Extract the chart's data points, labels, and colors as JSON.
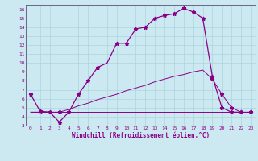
{
  "xlabel": "Windchill (Refroidissement éolien,°C)",
  "bg_color": "#cce8f0",
  "line_color": "#880088",
  "xlim": [
    -0.5,
    23.5
  ],
  "ylim": [
    3,
    16.5
  ],
  "xticks": [
    0,
    1,
    2,
    3,
    4,
    5,
    6,
    7,
    8,
    9,
    10,
    11,
    12,
    13,
    14,
    15,
    16,
    17,
    18,
    19,
    20,
    21,
    22,
    23
  ],
  "yticks": [
    3,
    4,
    5,
    6,
    7,
    8,
    9,
    10,
    11,
    12,
    13,
    14,
    15,
    16
  ],
  "line1_x": [
    0,
    1,
    2,
    3,
    4,
    5,
    6,
    7,
    8,
    9,
    10,
    11,
    12,
    13,
    14,
    15,
    16,
    17,
    18,
    19,
    20,
    21,
    22
  ],
  "line1_y": [
    6.5,
    4.6,
    4.5,
    3.4,
    4.5,
    6.5,
    8.0,
    9.5,
    10.0,
    12.2,
    12.2,
    13.8,
    14.0,
    15.0,
    15.3,
    15.5,
    16.1,
    15.7,
    15.0,
    8.5,
    5.0,
    4.5,
    4.5
  ],
  "line1_markers_x": [
    0,
    1,
    2,
    3,
    4,
    5,
    6,
    7,
    9,
    10,
    11,
    12,
    13,
    14,
    15,
    16,
    17,
    18,
    19,
    20,
    21,
    22
  ],
  "line1_markers_y": [
    6.5,
    4.6,
    4.5,
    3.4,
    4.5,
    6.5,
    8.0,
    9.5,
    12.2,
    12.2,
    13.8,
    14.0,
    15.0,
    15.3,
    15.5,
    16.1,
    15.7,
    15.0,
    8.5,
    5.0,
    4.5,
    4.5
  ],
  "line2_x": [
    0,
    1,
    2,
    3,
    4,
    5,
    6,
    7,
    8,
    9,
    10,
    11,
    12,
    13,
    14,
    15,
    16,
    17,
    18,
    19,
    20,
    21,
    22,
    23
  ],
  "line2_y": [
    4.5,
    4.5,
    4.5,
    4.5,
    4.5,
    4.5,
    4.5,
    4.5,
    4.5,
    4.5,
    4.5,
    4.5,
    4.5,
    4.5,
    4.5,
    4.5,
    4.5,
    4.5,
    4.5,
    4.5,
    4.5,
    4.5,
    4.5,
    4.5
  ],
  "line3_x": [
    0,
    1,
    2,
    3,
    4,
    5,
    6,
    7,
    8,
    9,
    10,
    11,
    12,
    13,
    14,
    15,
    16,
    17,
    18,
    19,
    20,
    21,
    22,
    23
  ],
  "line3_y": [
    4.5,
    4.5,
    4.5,
    4.5,
    4.8,
    5.2,
    5.5,
    5.9,
    6.2,
    6.5,
    6.9,
    7.2,
    7.5,
    7.9,
    8.2,
    8.5,
    8.7,
    9.0,
    9.2,
    8.2,
    6.5,
    5.0,
    4.5,
    4.5
  ],
  "line3_markers_x": [
    3,
    19,
    20,
    21,
    22,
    23
  ],
  "line3_markers_y": [
    4.5,
    8.2,
    6.5,
    5.0,
    4.5,
    4.5
  ]
}
